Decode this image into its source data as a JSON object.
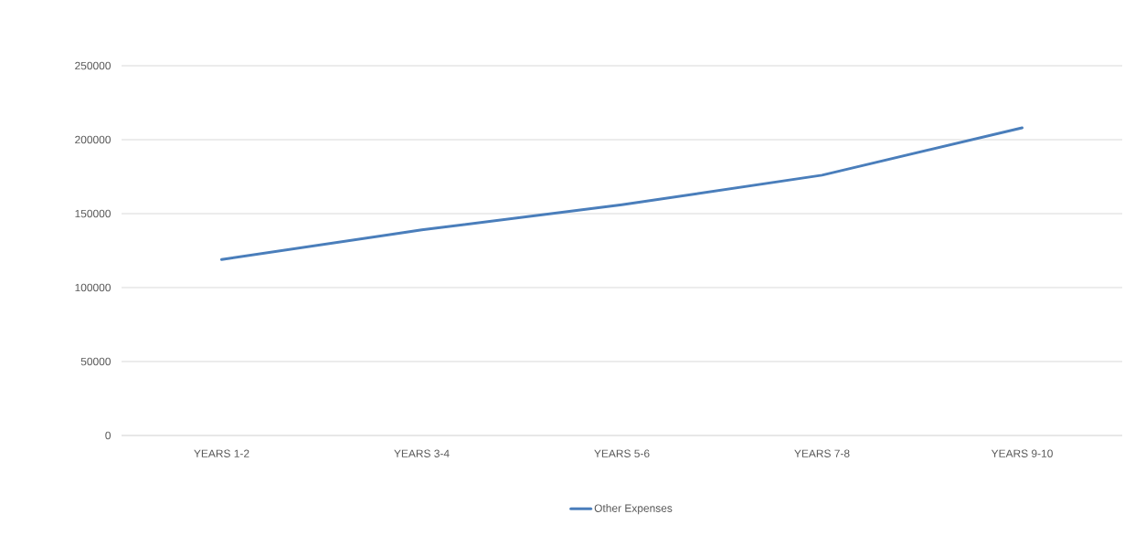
{
  "chart_data": {
    "type": "line",
    "categories": [
      "YEARS 1-2",
      "YEARS 3-4",
      "YEARS 5-6",
      "YEARS 7-8",
      "YEARS 9-10"
    ],
    "series": [
      {
        "name": "Other Expenses",
        "color": "#4a7ebb",
        "values": [
          119000,
          139000,
          156000,
          176000,
          208000
        ]
      }
    ],
    "ylim": [
      0,
      250000
    ],
    "yticks": [
      0,
      50000,
      100000,
      150000,
      200000,
      250000
    ],
    "grid": "y",
    "legend": "bottom",
    "marker": "none",
    "line_style": "solid"
  }
}
